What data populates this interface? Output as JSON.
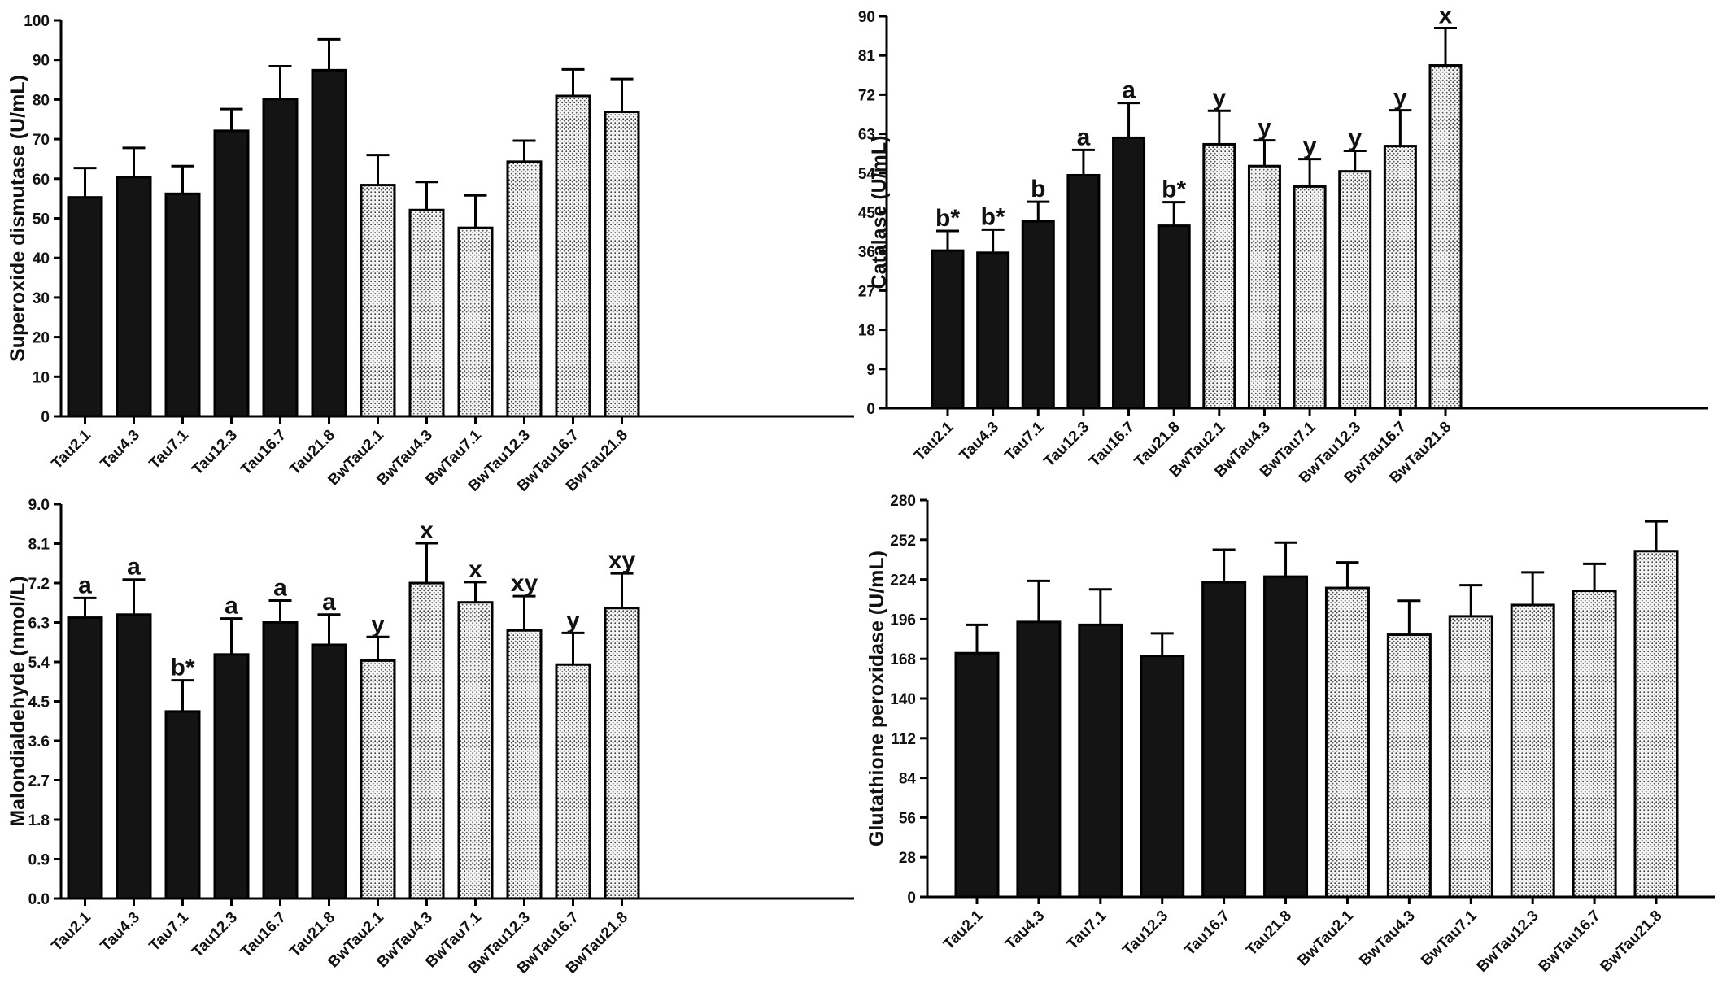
{
  "chart_data": [
    {
      "type": "bar",
      "ylabel": "Superoxide dismutase (U/mL)",
      "xlabel": "",
      "ylim": [
        0,
        100
      ],
      "yticks": [
        "0",
        "10",
        "20",
        "30",
        "40",
        "50",
        "60",
        "70",
        "80",
        "90",
        "100"
      ],
      "categories": [
        "Tau2.1",
        "Tau4.3",
        "Tau7.1",
        "Tau12.3",
        "Tau16.7",
        "Tau21.8",
        "BwTau2.1",
        "BwTau4.3",
        "BwTau7.1",
        "BwTau12.3",
        "BwTau16.7",
        "BwTau21.8"
      ],
      "fills": [
        "solid",
        "solid",
        "solid",
        "solid",
        "solid",
        "solid",
        "dotted",
        "dotted",
        "dotted",
        "dotted",
        "dotted",
        "dotted"
      ],
      "values": [
        55.3,
        60.4,
        56.2,
        72.1,
        80.1,
        87.4,
        58.4,
        52.1,
        47.6,
        64.3,
        80.9,
        76.9
      ],
      "error": [
        7.4,
        7.4,
        7.0,
        5.5,
        8.3,
        7.8,
        7.6,
        7.1,
        8.2,
        5.3,
        6.7,
        8.3
      ],
      "sig_labels": [
        "",
        "",
        "",
        "",
        "",
        "",
        "",
        "",
        "",
        "",
        "",
        ""
      ],
      "grid": false
    },
    {
      "type": "bar",
      "ylabel": "Catalase (U/mL)",
      "xlabel": "",
      "ylim": [
        0,
        90
      ],
      "yticks": [
        "0",
        "9",
        "18",
        "27",
        "36",
        "45",
        "54",
        "63",
        "72",
        "81",
        "90"
      ],
      "categories": [
        "Tau2.1",
        "Tau4.3",
        "Tau7.1",
        "Tau12.3",
        "Tau16.7",
        "Tau21.8",
        "BwTau2.1",
        "BwTau4.3",
        "BwTau7.1",
        "BwTau12.3",
        "BwTau16.7",
        "BwTau21.8"
      ],
      "fills": [
        "solid",
        "solid",
        "solid",
        "solid",
        "solid",
        "solid",
        "dotted",
        "dotted",
        "dotted",
        "dotted",
        "dotted",
        "dotted"
      ],
      "values": [
        36.2,
        35.7,
        42.9,
        53.5,
        62.1,
        41.9,
        60.6,
        55.6,
        50.9,
        54.4,
        60.2,
        78.7
      ],
      "error": [
        4.5,
        5.3,
        4.5,
        5.8,
        8.0,
        5.4,
        7.7,
        5.9,
        6.3,
        4.7,
        8.2,
        8.6
      ],
      "sig_labels": [
        "b*",
        "b*",
        "b",
        "a",
        "a",
        "b*",
        "y",
        "y",
        "y",
        "y",
        "y",
        "x"
      ],
      "grid": false
    },
    {
      "type": "bar",
      "ylabel": "Malondialdehyde (nmol/L)",
      "xlabel": "",
      "ylim": [
        0,
        9
      ],
      "yticks": [
        "0.0",
        "0.9",
        "1.8",
        "2.7",
        "3.6",
        "4.5",
        "5.4",
        "6.3",
        "7.2",
        "8.1",
        "9.0"
      ],
      "categories": [
        "Tau2.1",
        "Tau4.3",
        "Tau7.1",
        "Tau12.3",
        "Tau16.7",
        "Tau21.8",
        "BwTau2.1",
        "BwTau4.3",
        "BwTau7.1",
        "BwTau12.3",
        "BwTau16.7",
        "BwTau21.8"
      ],
      "fills": [
        "solid",
        "solid",
        "solid",
        "solid",
        "solid",
        "solid",
        "dotted",
        "dotted",
        "dotted",
        "dotted",
        "dotted",
        "dotted"
      ],
      "values": [
        6.41,
        6.48,
        4.27,
        5.57,
        6.3,
        5.79,
        5.43,
        7.2,
        6.76,
        6.12,
        5.34,
        6.63
      ],
      "error": [
        0.45,
        0.8,
        0.71,
        0.82,
        0.5,
        0.69,
        0.54,
        0.91,
        0.46,
        0.78,
        0.72,
        0.79
      ],
      "sig_labels": [
        "a",
        "a",
        "b*",
        "a",
        "a",
        "a",
        "y",
        "x",
        "x",
        "xy",
        "y",
        "xy"
      ],
      "grid": false
    },
    {
      "type": "bar",
      "ylabel": "Glutathione peroxidase (U/mL)",
      "xlabel": "",
      "ylim": [
        0,
        280
      ],
      "yticks": [
        "0",
        "28",
        "56",
        "84",
        "112",
        "140",
        "168",
        "196",
        "224",
        "252",
        "280"
      ],
      "categories": [
        "Tau2.1",
        "Tau4.3",
        "Tau7.1",
        "Tau12.3",
        "Tau16.7",
        "Tau21.8",
        "BwTau2.1",
        "BwTau4.3",
        "BwTau7.1",
        "BwTau12.3",
        "BwTau16.7",
        "BwTau21.8"
      ],
      "fills": [
        "solid",
        "solid",
        "solid",
        "solid",
        "solid",
        "solid",
        "dotted",
        "dotted",
        "dotted",
        "dotted",
        "dotted",
        "dotted"
      ],
      "values": [
        172,
        194,
        192,
        170,
        222,
        226,
        218,
        185,
        198,
        206,
        216,
        244
      ],
      "error": [
        20,
        29,
        25,
        16,
        23,
        24,
        18,
        24,
        22,
        23,
        19,
        21
      ],
      "sig_labels": [
        "",
        "",
        "",
        "",
        "",
        "",
        "",
        "",
        "",
        "",
        "",
        ""
      ],
      "grid": false
    }
  ]
}
